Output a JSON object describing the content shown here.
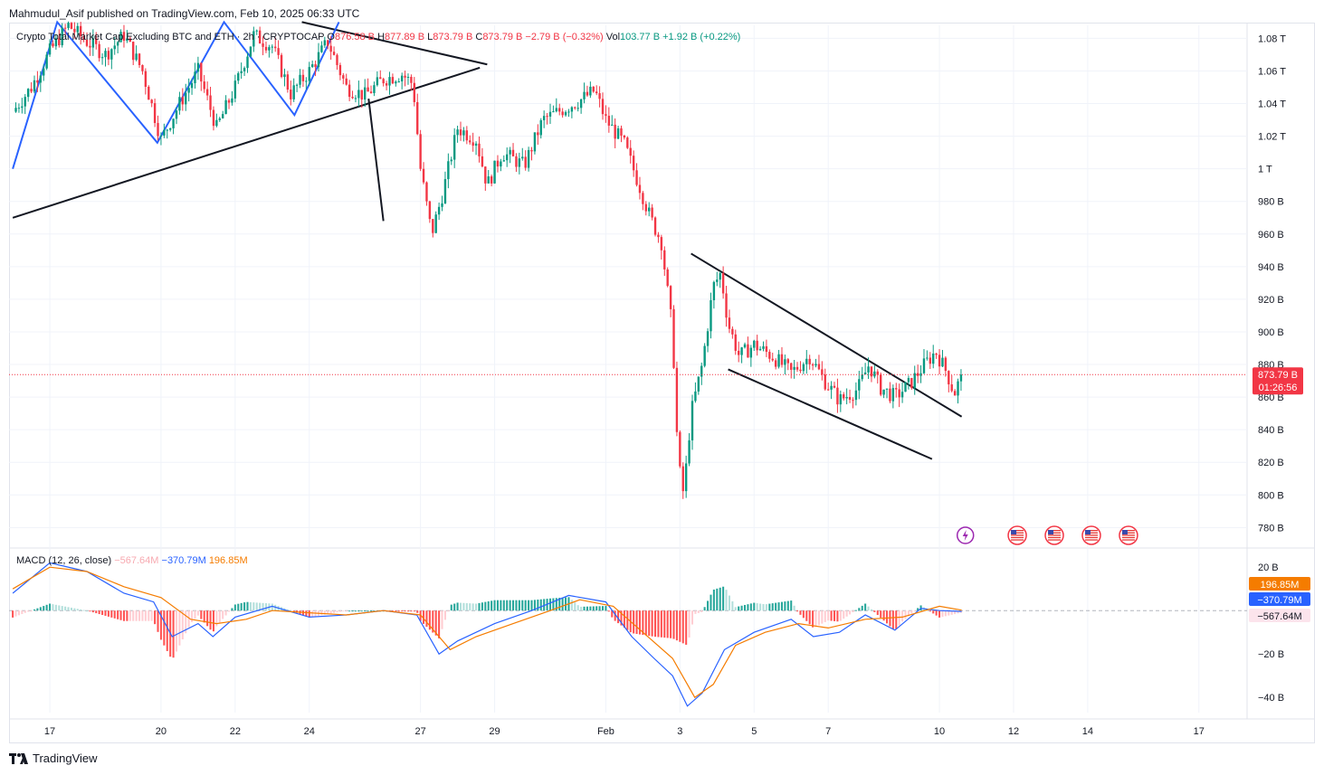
{
  "header": {
    "publisher": "Mahmudul_Asif published on TradingView.com, Feb 10, 2025 06:33 UTC"
  },
  "legend": {
    "symbol": "Crypto Total Market Cap Excluding BTC and ETH · 2h · CRYPTOCAP",
    "o_label": "O",
    "o_value": "876.58 B",
    "h_label": "H",
    "h_value": "877.89 B",
    "l_label": "L",
    "l_value": "873.79 B",
    "c_label": "C",
    "c_value": "873.79 B",
    "change": "−2.79 B (−0.32%)",
    "vol_label": "Vol",
    "vol_value": "103.77 B",
    "vol_change": "+1.92 B (+0.22%)"
  },
  "macd_legend": {
    "name": "MACD (12, 26, close)",
    "histogram": "−567.64M",
    "macd": "−370.79M",
    "signal": "196.85M"
  },
  "footer": {
    "brand": "TradingView",
    "logo_icon": "tradingview-logo-icon"
  },
  "colors": {
    "up": "#089981",
    "down": "#f23645",
    "macd": "#2962ff",
    "signal": "#f57c00",
    "drawing": "#131722",
    "zigzag": "#2962ff"
  },
  "chart_data": [
    {
      "type": "candlestick",
      "title": "Crypto Total Market Cap Excluding BTC and ETH",
      "interval": "2h",
      "y_unit": "B",
      "y_ticks": [
        "1.08 T",
        "1.06 T",
        "1.04 T",
        "1.02 T",
        "1 T",
        "980 B",
        "960 B",
        "940 B",
        "920 B",
        "900 B",
        "880 B",
        "860 B",
        "840 B",
        "820 B",
        "800 B",
        "780 B"
      ],
      "y_tick_values": [
        1080,
        1060,
        1040,
        1020,
        1000,
        980,
        960,
        940,
        920,
        900,
        880,
        860,
        840,
        820,
        800,
        780
      ],
      "ylim": [
        768,
        1088
      ],
      "x_ticks": [
        "17",
        "20",
        "22",
        "24",
        "27",
        "29",
        "Feb",
        "3",
        "5",
        "7",
        "10",
        "12",
        "14",
        "17"
      ],
      "x_tick_days": [
        17,
        20,
        22,
        24,
        27,
        29,
        32,
        34,
        36,
        38,
        41,
        43,
        45,
        48
      ],
      "xlim": [
        15.9,
        49.3
      ],
      "last_price": "873.79 B",
      "last_price_value": 873.79,
      "countdown": "01:26:56",
      "close_series": [
        {
          "d": 16.0,
          "c": 1035
        },
        {
          "d": 16.5,
          "c": 1050
        },
        {
          "d": 17.0,
          "c": 1072
        },
        {
          "d": 17.5,
          "c": 1088
        },
        {
          "d": 18.0,
          "c": 1078
        },
        {
          "d": 18.5,
          "c": 1070
        },
        {
          "d": 19.0,
          "c": 1082
        },
        {
          "d": 19.5,
          "c": 1060
        },
        {
          "d": 20.0,
          "c": 1018
        },
        {
          "d": 20.5,
          "c": 1040
        },
        {
          "d": 21.0,
          "c": 1060
        },
        {
          "d": 21.5,
          "c": 1025
        },
        {
          "d": 22.0,
          "c": 1050
        },
        {
          "d": 22.5,
          "c": 1082
        },
        {
          "d": 23.0,
          "c": 1075
        },
        {
          "d": 23.5,
          "c": 1046
        },
        {
          "d": 24.0,
          "c": 1060
        },
        {
          "d": 24.5,
          "c": 1078
        },
        {
          "d": 25.0,
          "c": 1050
        },
        {
          "d": 25.5,
          "c": 1045
        },
        {
          "d": 26.0,
          "c": 1055
        },
        {
          "d": 26.5,
          "c": 1058
        },
        {
          "d": 26.8,
          "c": 1052
        },
        {
          "d": 27.0,
          "c": 1000
        },
        {
          "d": 27.3,
          "c": 960
        },
        {
          "d": 27.6,
          "c": 985
        },
        {
          "d": 28.0,
          "c": 1025
        },
        {
          "d": 28.5,
          "c": 1018
        },
        {
          "d": 28.8,
          "c": 990
        },
        {
          "d": 29.2,
          "c": 1010
        },
        {
          "d": 29.8,
          "c": 1002
        },
        {
          "d": 30.3,
          "c": 1030
        },
        {
          "d": 30.8,
          "c": 1036
        },
        {
          "d": 31.3,
          "c": 1042
        },
        {
          "d": 31.7,
          "c": 1048
        },
        {
          "d": 32.0,
          "c": 1030
        },
        {
          "d": 32.5,
          "c": 1015
        },
        {
          "d": 32.9,
          "c": 990
        },
        {
          "d": 33.2,
          "c": 970
        },
        {
          "d": 33.5,
          "c": 955
        },
        {
          "d": 33.8,
          "c": 900
        },
        {
          "d": 33.95,
          "c": 820
        },
        {
          "d": 34.1,
          "c": 800
        },
        {
          "d": 34.3,
          "c": 850
        },
        {
          "d": 34.6,
          "c": 880
        },
        {
          "d": 34.9,
          "c": 928
        },
        {
          "d": 35.1,
          "c": 936
        },
        {
          "d": 35.3,
          "c": 905
        },
        {
          "d": 35.6,
          "c": 885
        },
        {
          "d": 36.0,
          "c": 892
        },
        {
          "d": 36.5,
          "c": 885
        },
        {
          "d": 37.0,
          "c": 875
        },
        {
          "d": 37.5,
          "c": 885
        },
        {
          "d": 37.9,
          "c": 870
        },
        {
          "d": 38.3,
          "c": 858
        },
        {
          "d": 38.8,
          "c": 865
        },
        {
          "d": 39.1,
          "c": 880
        },
        {
          "d": 39.4,
          "c": 866
        },
        {
          "d": 39.8,
          "c": 860
        },
        {
          "d": 40.2,
          "c": 868
        },
        {
          "d": 40.6,
          "c": 880
        },
        {
          "d": 40.9,
          "c": 888
        },
        {
          "d": 41.2,
          "c": 875
        },
        {
          "d": 41.4,
          "c": 862
        },
        {
          "d": 41.6,
          "c": 873.79
        }
      ]
    },
    {
      "type": "macd",
      "title": "MACD (12, 26, close)",
      "y_ticks": [
        "20 B",
        "−20 B",
        "−40 B"
      ],
      "y_tick_values": [
        20,
        -20,
        -40
      ],
      "ylim": [
        -47,
        28
      ],
      "labels": [
        "196.85M",
        "−370.79M",
        "−567.64M"
      ],
      "macd_series": [
        {
          "d": 16.0,
          "v": 8
        },
        {
          "d": 17.0,
          "v": 22
        },
        {
          "d": 18.0,
          "v": 18
        },
        {
          "d": 19.0,
          "v": 8
        },
        {
          "d": 19.8,
          "v": 4
        },
        {
          "d": 20.3,
          "v": -12
        },
        {
          "d": 21.0,
          "v": -6
        },
        {
          "d": 21.4,
          "v": -12
        },
        {
          "d": 22.0,
          "v": -3
        },
        {
          "d": 23.0,
          "v": 2
        },
        {
          "d": 24.0,
          "v": -3
        },
        {
          "d": 25.0,
          "v": -2
        },
        {
          "d": 26.0,
          "v": 0
        },
        {
          "d": 26.9,
          "v": -2
        },
        {
          "d": 27.5,
          "v": -20
        },
        {
          "d": 28.0,
          "v": -14
        },
        {
          "d": 29.0,
          "v": -6
        },
        {
          "d": 30.0,
          "v": 0
        },
        {
          "d": 31.0,
          "v": 7
        },
        {
          "d": 32.0,
          "v": 4
        },
        {
          "d": 32.7,
          "v": -12
        },
        {
          "d": 33.3,
          "v": -22
        },
        {
          "d": 33.8,
          "v": -30
        },
        {
          "d": 34.2,
          "v": -44
        },
        {
          "d": 34.6,
          "v": -38
        },
        {
          "d": 35.2,
          "v": -18
        },
        {
          "d": 36.0,
          "v": -10
        },
        {
          "d": 37.0,
          "v": -4
        },
        {
          "d": 37.6,
          "v": -12
        },
        {
          "d": 38.3,
          "v": -10
        },
        {
          "d": 39.0,
          "v": -2
        },
        {
          "d": 39.8,
          "v": -9
        },
        {
          "d": 40.5,
          "v": 1
        },
        {
          "d": 41.0,
          "v": 0
        },
        {
          "d": 41.6,
          "v": -0.37
        }
      ],
      "signal_series": [
        {
          "d": 16.0,
          "v": 10
        },
        {
          "d": 17.0,
          "v": 20
        },
        {
          "d": 18.0,
          "v": 18
        },
        {
          "d": 19.0,
          "v": 11
        },
        {
          "d": 20.0,
          "v": 6
        },
        {
          "d": 20.8,
          "v": -4
        },
        {
          "d": 21.5,
          "v": -6
        },
        {
          "d": 22.3,
          "v": -4
        },
        {
          "d": 23.0,
          "v": 0
        },
        {
          "d": 24.0,
          "v": -1
        },
        {
          "d": 25.0,
          "v": -2
        },
        {
          "d": 26.0,
          "v": 0
        },
        {
          "d": 27.0,
          "v": -2
        },
        {
          "d": 27.8,
          "v": -18
        },
        {
          "d": 28.5,
          "v": -12
        },
        {
          "d": 29.5,
          "v": -6
        },
        {
          "d": 30.5,
          "v": 0
        },
        {
          "d": 31.3,
          "v": 5
        },
        {
          "d": 32.2,
          "v": 2
        },
        {
          "d": 33.0,
          "v": -10
        },
        {
          "d": 33.8,
          "v": -22
        },
        {
          "d": 34.4,
          "v": -40
        },
        {
          "d": 34.9,
          "v": -34
        },
        {
          "d": 35.5,
          "v": -16
        },
        {
          "d": 36.3,
          "v": -10
        },
        {
          "d": 37.2,
          "v": -6
        },
        {
          "d": 38.0,
          "v": -8
        },
        {
          "d": 39.0,
          "v": -4
        },
        {
          "d": 40.0,
          "v": -3
        },
        {
          "d": 41.0,
          "v": 2
        },
        {
          "d": 41.6,
          "v": 0.2
        }
      ]
    }
  ]
}
